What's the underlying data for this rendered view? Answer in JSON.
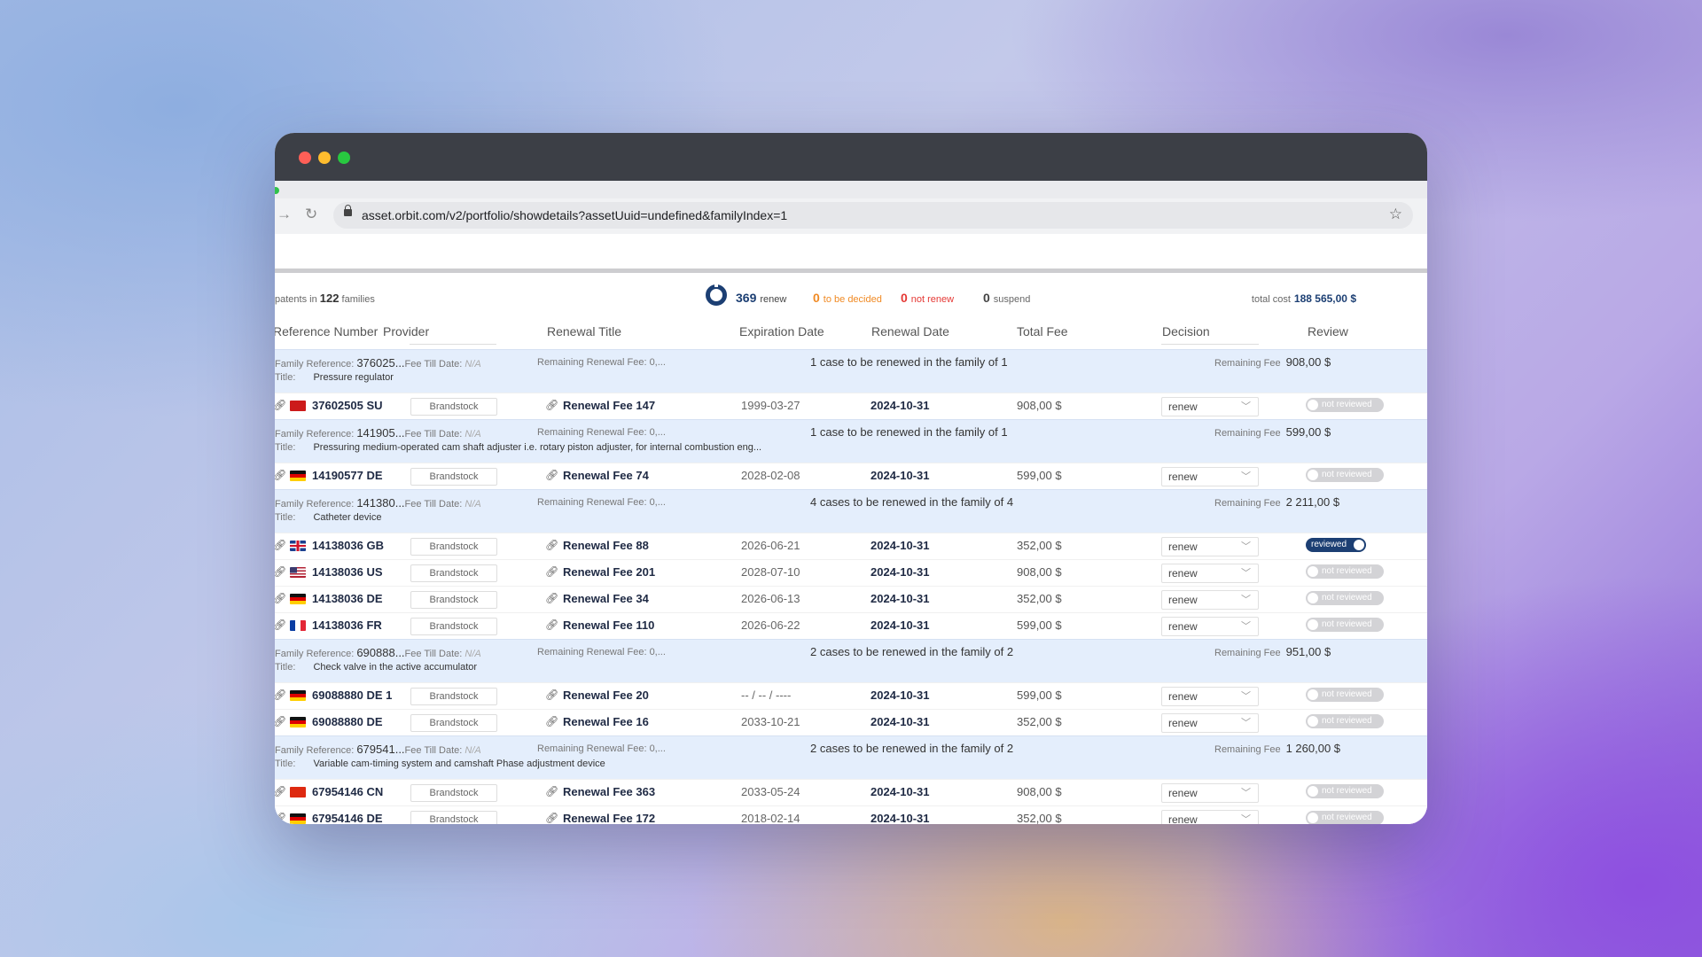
{
  "browser": {
    "url": "asset.orbit.com/v2/portfolio/showdetails?assetUuid=undefined&familyIndex=1",
    "forward_icon": "arrow-right-icon",
    "reload_icon": "reload-icon",
    "bookmark_icon": "star-icon"
  },
  "summary": {
    "patents_prefix": "patents in",
    "families_count": "122",
    "families_label": "families",
    "renew_count": "369",
    "renew_label": "renew",
    "tbd_count": "0",
    "tbd_label": "to be decided",
    "not_renew_count": "0",
    "not_renew_label": "not renew",
    "suspend_count": "0",
    "suspend_label": "suspend",
    "total_cost_label": "total cost",
    "total_cost_value": "188 565,00 $"
  },
  "columns": [
    "Reference Number",
    "Provider",
    "Renewal Title",
    "Expiration Date",
    "Renewal Date",
    "Total Fee",
    "Decision",
    "Review"
  ],
  "labels": {
    "family_reference": "Family Reference:",
    "fee_till_date": "Fee Till Date:",
    "na": "N/A",
    "remaining_renewal_fee": "Remaining Renewal Fee: 0,...",
    "title": "Title:",
    "remaining_fee": "Remaining Fee"
  },
  "colors": {
    "accent": "#1c3f73",
    "to_be_decided": "#f08a24",
    "not_renew": "#e53935",
    "family_bg": "#e4eefc"
  },
  "families": [
    {
      "ref": "376025...",
      "title": "Pressure regulator",
      "cases": "1 case to be renewed in the family of 1",
      "remaining_fee": "908,00 $",
      "rows": [
        {
          "flag": "su",
          "ref": "37602505 SU",
          "provider": "Brandstock",
          "title": "Renewal Fee 147",
          "exp": "1999-03-27",
          "ren": "2024-10-31",
          "fee": "908,00 $",
          "decision": "renew",
          "review": "not reviewed",
          "reviewed": false
        }
      ]
    },
    {
      "ref": "141905...",
      "title": "Pressuring medium-operated cam shaft adjuster i.e. rotary piston adjuster, for internal combustion eng...",
      "cases": "1 case to be renewed in the family of 1",
      "remaining_fee": "599,00 $",
      "rows": [
        {
          "flag": "de",
          "ref": "14190577 DE",
          "provider": "Brandstock",
          "title": "Renewal Fee 74",
          "exp": "2028-02-08",
          "ren": "2024-10-31",
          "fee": "599,00 $",
          "decision": "renew",
          "review": "not reviewed",
          "reviewed": false
        }
      ]
    },
    {
      "ref": "141380...",
      "title": "Catheter device",
      "cases": "4 cases to be renewed in the family of 4",
      "remaining_fee": "2 211,00 $",
      "rows": [
        {
          "flag": "gb",
          "ref": "14138036 GB",
          "provider": "Brandstock",
          "title": "Renewal Fee 88",
          "exp": "2026-06-21",
          "ren": "2024-10-31",
          "fee": "352,00 $",
          "decision": "renew",
          "review": "reviewed",
          "reviewed": true
        },
        {
          "flag": "us",
          "ref": "14138036 US",
          "provider": "Brandstock",
          "title": "Renewal Fee 201",
          "exp": "2028-07-10",
          "ren": "2024-10-31",
          "fee": "908,00 $",
          "decision": "renew",
          "review": "not reviewed",
          "reviewed": false
        },
        {
          "flag": "de",
          "ref": "14138036 DE",
          "provider": "Brandstock",
          "title": "Renewal Fee 34",
          "exp": "2026-06-13",
          "ren": "2024-10-31",
          "fee": "352,00 $",
          "decision": "renew",
          "review": "not reviewed",
          "reviewed": false
        },
        {
          "flag": "fr",
          "ref": "14138036 FR",
          "provider": "Brandstock",
          "title": "Renewal Fee 110",
          "exp": "2026-06-22",
          "ren": "2024-10-31",
          "fee": "599,00 $",
          "decision": "renew",
          "review": "not reviewed",
          "reviewed": false
        }
      ]
    },
    {
      "ref": "690888...",
      "title": "Check valve in the active accumulator",
      "cases": "2 cases to be renewed in the family of 2",
      "remaining_fee": "951,00 $",
      "rows": [
        {
          "flag": "de",
          "ref": "69088880 DE 1",
          "provider": "Brandstock",
          "title": "Renewal Fee 20",
          "exp": "-- / -- / ----",
          "ren": "2024-10-31",
          "fee": "599,00 $",
          "decision": "renew",
          "review": "not reviewed",
          "reviewed": false
        },
        {
          "flag": "de",
          "ref": "69088880 DE",
          "provider": "Brandstock",
          "title": "Renewal Fee 16",
          "exp": "2033-10-21",
          "ren": "2024-10-31",
          "fee": "352,00 $",
          "decision": "renew",
          "review": "not reviewed",
          "reviewed": false
        }
      ]
    },
    {
      "ref": "679541...",
      "title": "Variable cam-timing system and camshaft Phase adjustment device",
      "cases": "2 cases to be renewed in the family of 2",
      "remaining_fee": "1 260,00 $",
      "rows": [
        {
          "flag": "cn",
          "ref": "67954146 CN",
          "provider": "Brandstock",
          "title": "Renewal Fee 363",
          "exp": "2033-05-24",
          "ren": "2024-10-31",
          "fee": "908,00 $",
          "decision": "renew",
          "review": "not reviewed",
          "reviewed": false
        },
        {
          "flag": "de",
          "ref": "67954146 DE",
          "provider": "Brandstock",
          "title": "Renewal Fee 172",
          "exp": "2018-02-14",
          "ren": "2024-10-31",
          "fee": "352,00 $",
          "decision": "renew",
          "review": "not reviewed",
          "reviewed": false
        }
      ]
    }
  ]
}
